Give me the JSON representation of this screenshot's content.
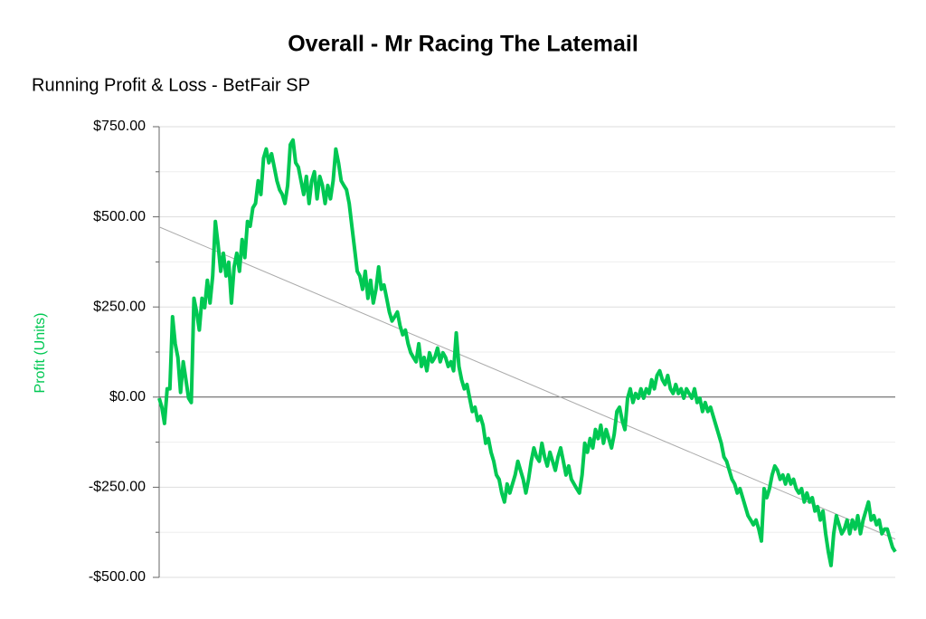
{
  "chart_data": {
    "type": "line",
    "title": "Overall - Mr Racing The Latemail",
    "subtitle": "Running Profit & Loss - BetFair SP",
    "y_label": "Profit (Units)",
    "ylim": [
      -500,
      750
    ],
    "yticks": [
      {
        "value": -500,
        "label": "-$500.00"
      },
      {
        "value": -250,
        "label": "-$250.00"
      },
      {
        "value": 0,
        "label": "$0.00"
      },
      {
        "value": 250,
        "label": "$250.00"
      },
      {
        "value": 500,
        "label": "$500.00"
      },
      {
        "value": 750,
        "label": "$750.00"
      }
    ],
    "minor_yticks": [
      -375,
      -125,
      125,
      375,
      625
    ],
    "grid": true,
    "color": "#00c853",
    "trendline": {
      "start": 472,
      "end": -394,
      "color": "#aaaaaa"
    },
    "values": [
      -3,
      -28,
      -73,
      23,
      23,
      223,
      148,
      110,
      13,
      98,
      48,
      -3,
      -15,
      274,
      236,
      186,
      274,
      248,
      324,
      261,
      336,
      487,
      424,
      349,
      399,
      336,
      374,
      261,
      361,
      399,
      349,
      437,
      387,
      487,
      474,
      525,
      537,
      600,
      562,
      663,
      688,
      650,
      675,
      638,
      600,
      575,
      562,
      537,
      587,
      700,
      713,
      650,
      638,
      600,
      562,
      612,
      537,
      600,
      625,
      550,
      612,
      587,
      537,
      587,
      550,
      600,
      688,
      650,
      600,
      587,
      575,
      537,
      474,
      412,
      349,
      336,
      299,
      349,
      274,
      324,
      261,
      299,
      361,
      299,
      311,
      274,
      236,
      211,
      223,
      236,
      198,
      173,
      186,
      148,
      123,
      110,
      98,
      148,
      85,
      110,
      73,
      123,
      98,
      110,
      136,
      98,
      123,
      110,
      85,
      98,
      73,
      178,
      85,
      48,
      23,
      35,
      -3,
      -40,
      -28,
      -65,
      -53,
      -78,
      -128,
      -115,
      -153,
      -178,
      -216,
      -228,
      -266,
      -291,
      -241,
      -266,
      -241,
      -216,
      -178,
      -203,
      -228,
      -266,
      -228,
      -178,
      -141,
      -166,
      -178,
      -128,
      -166,
      -191,
      -153,
      -178,
      -203,
      -166,
      -141,
      -178,
      -216,
      -191,
      -228,
      -241,
      -254,
      -266,
      -216,
      -128,
      -153,
      -115,
      -141,
      -90,
      -115,
      -78,
      -128,
      -90,
      -115,
      -141,
      -103,
      -40,
      -28,
      -65,
      -90,
      -3,
      23,
      -15,
      10,
      -3,
      23,
      -3,
      23,
      10,
      48,
      23,
      60,
      73,
      48,
      35,
      60,
      23,
      10,
      35,
      10,
      23,
      -3,
      23,
      10,
      -3,
      23,
      -15,
      -3,
      -40,
      -15,
      -40,
      -28,
      -53,
      -78,
      -103,
      -128,
      -166,
      -178,
      -203,
      -228,
      -241,
      -266,
      -254,
      -279,
      -304,
      -329,
      -341,
      -354,
      -341,
      -366,
      -399,
      -254,
      -279,
      -254,
      -216,
      -191,
      -203,
      -228,
      -216,
      -241,
      -216,
      -241,
      -228,
      -254,
      -266,
      -254,
      -291,
      -266,
      -291,
      -279,
      -316,
      -304,
      -341,
      -316,
      -379,
      -429,
      -467,
      -379,
      -329,
      -354,
      -379,
      -366,
      -341,
      -379,
      -341,
      -366,
      -329,
      -379,
      -341,
      -316,
      -291,
      -341,
      -329,
      -354,
      -341,
      -379,
      -366,
      -366,
      -392,
      -417,
      -429
    ]
  }
}
